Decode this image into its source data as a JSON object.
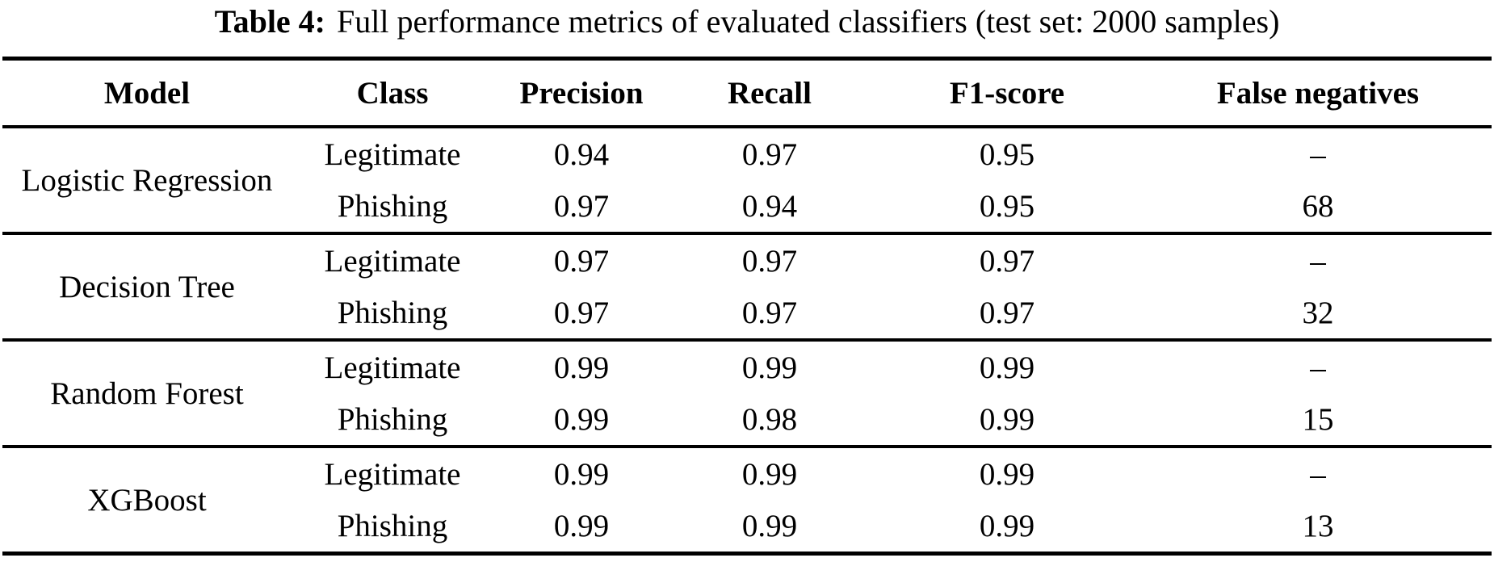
{
  "caption": {
    "label": "Table 4:",
    "text": "Full performance metrics of evaluated classifiers (test set: 2000 samples)"
  },
  "colors": {
    "text": "#000000",
    "background": "#ffffff",
    "rule": "#000000"
  },
  "table": {
    "columns": [
      "Model",
      "Class",
      "Precision",
      "Recall",
      "F1-score",
      "False negatives"
    ],
    "groups": [
      {
        "model": "Logistic Regression",
        "rows": [
          {
            "class": "Legitimate",
            "precision": "0.94",
            "recall": "0.97",
            "f1_score": "0.95",
            "false_negatives": "–"
          },
          {
            "class": "Phishing",
            "precision": "0.97",
            "recall": "0.94",
            "f1_score": "0.95",
            "false_negatives": "68"
          }
        ]
      },
      {
        "model": "Decision Tree",
        "rows": [
          {
            "class": "Legitimate",
            "precision": "0.97",
            "recall": "0.97",
            "f1_score": "0.97",
            "false_negatives": "–"
          },
          {
            "class": "Phishing",
            "precision": "0.97",
            "recall": "0.97",
            "f1_score": "0.97",
            "false_negatives": "32"
          }
        ]
      },
      {
        "model": "Random Forest",
        "rows": [
          {
            "class": "Legitimate",
            "precision": "0.99",
            "recall": "0.99",
            "f1_score": "0.99",
            "false_negatives": "–"
          },
          {
            "class": "Phishing",
            "precision": "0.99",
            "recall": "0.98",
            "f1_score": "0.99",
            "false_negatives": "15"
          }
        ]
      },
      {
        "model": "XGBoost",
        "rows": [
          {
            "class": "Legitimate",
            "precision": "0.99",
            "recall": "0.99",
            "f1_score": "0.99",
            "false_negatives": "–"
          },
          {
            "class": "Phishing",
            "precision": "0.99",
            "recall": "0.99",
            "f1_score": "0.99",
            "false_negatives": "13"
          }
        ]
      }
    ]
  }
}
